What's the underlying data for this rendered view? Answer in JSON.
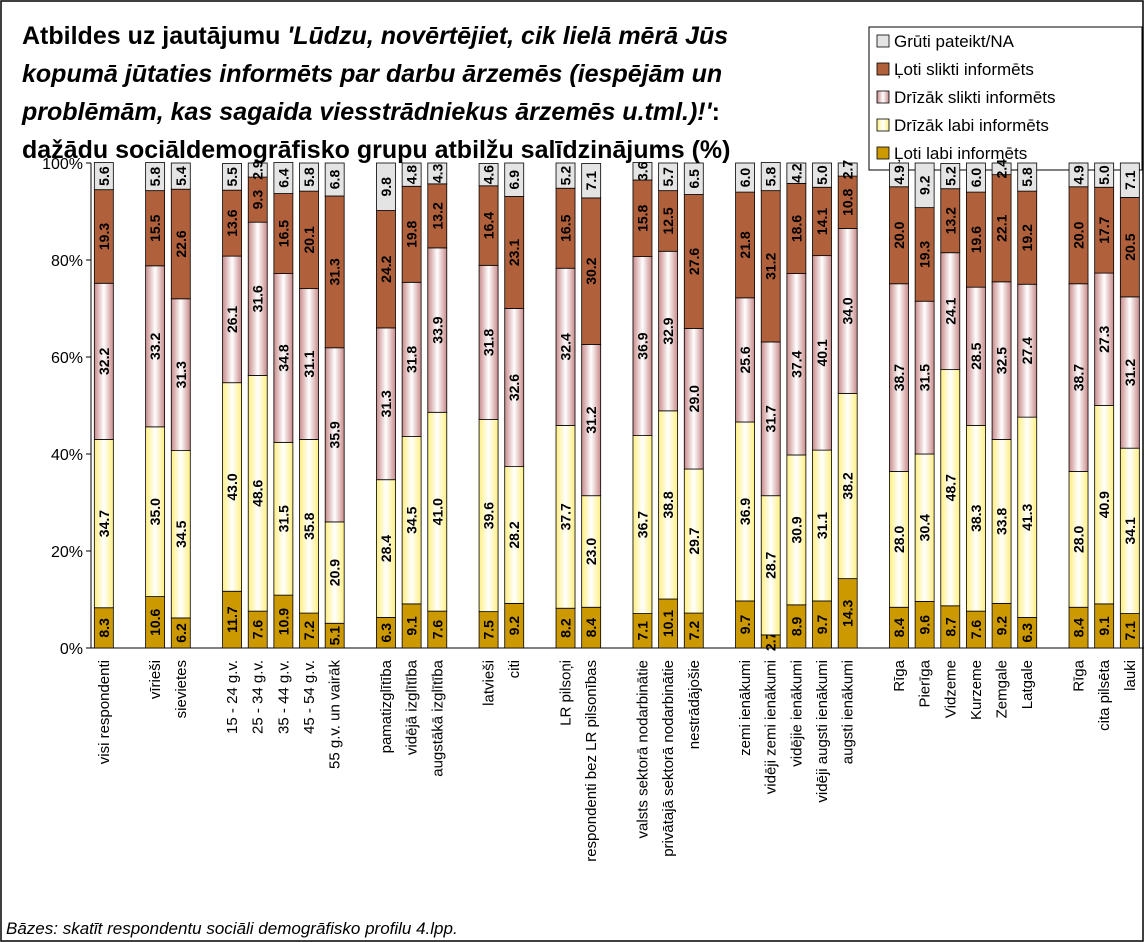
{
  "chart_data": {
    "type": "stacked_bar",
    "title": [
      "Atbildes uz jautājumu ",
      "'Lūdzu, novērtējiet, cik lielā mērā Jūs",
      "kopumā jūtaties informēts par darbu ārzemēs (iespējām un",
      "problēmām, kas sagaida viesstrādniekus ārzemēs u.tml.)!'",
      ":",
      "dažādu sociāldemogrāfisko grupu atbilžu salīdzinājums (%)"
    ],
    "footnote": "Bāzes: skatīt respondentu sociāli demogrāfisko profilu 4.lpp.",
    "categories": [
      "visi respondenti",
      null,
      "vīrieši",
      "sievietes",
      null,
      "15 - 24 g.v.",
      "25 - 34 g.v.",
      "35 - 44 g.v.",
      "45 - 54 g.v.",
      "55 g.v. un vairāk",
      null,
      "pamatizglītība",
      "vidējā izglītība",
      "augstākā izglītība",
      null,
      "latvieši",
      "citi",
      null,
      "LR pilsoņi",
      "respondenti bez LR pilsonības",
      null,
      "valsts sektorā nodarbinātie",
      "privātajā sektorā nodarbinātie",
      "nestrādājošie",
      null,
      "zemi ienākumi",
      "vidēji zemi ienākumi",
      "vidējie ienākumi",
      "vidēji augsti ienākumi",
      "augsti ienākumi",
      null,
      "Rīga",
      "Pierīga",
      "Vidzeme",
      "Kurzeme",
      "Zemgale",
      "Latgale",
      null,
      "Rīga",
      "cita pilsēta",
      "lauki"
    ],
    "series": [
      {
        "name": "Ļoti labi informēts",
        "color": "#cc9900",
        "values": [
          8.3,
          null,
          10.6,
          6.2,
          null,
          11.7,
          7.6,
          10.9,
          7.2,
          5.1,
          null,
          6.3,
          9.1,
          7.6,
          null,
          7.5,
          9.2,
          null,
          8.2,
          8.4,
          null,
          7.1,
          10.1,
          7.2,
          null,
          9.7,
          2.7,
          8.9,
          9.7,
          14.3,
          null,
          8.4,
          9.6,
          8.7,
          7.6,
          9.2,
          6.3,
          null,
          8.4,
          9.1,
          7.1
        ],
        "value_labels": [
          "8.3",
          null,
          "10.6",
          "6.2",
          null,
          "11.7",
          "7.6",
          "10.9",
          "7.2",
          "5.1",
          null,
          "6.3",
          "9.1",
          "7.6",
          null,
          "7.5",
          "9.2",
          null,
          "8.2",
          "8.4",
          null,
          "7.1",
          "10.1",
          "7.2",
          null,
          "9.7",
          "2.7",
          "8.9",
          "9.7",
          "14.3",
          null,
          "8.4",
          "9.6",
          "8.7",
          "7.6",
          "9.2",
          "6.3",
          null,
          "8.4",
          "9.1",
          "7.1"
        ]
      },
      {
        "name": "Drīzāk labi informēts",
        "color": "#ffef80",
        "values": [
          34.7,
          null,
          35.0,
          34.5,
          null,
          43.0,
          48.6,
          31.5,
          35.8,
          20.9,
          null,
          28.4,
          34.5,
          41.0,
          null,
          39.6,
          28.2,
          null,
          37.7,
          23.0,
          null,
          36.7,
          38.8,
          29.7,
          null,
          36.9,
          28.7,
          30.9,
          31.1,
          38.2,
          null,
          28.0,
          30.4,
          48.7,
          38.3,
          33.8,
          41.3,
          null,
          28.0,
          40.9,
          34.1
        ],
        "value_labels": [
          "34.7",
          null,
          "35.0",
          "34.5",
          null,
          "43.0",
          "48.6",
          "31.5",
          "35.8",
          "20.9",
          null,
          "28.4",
          "34.5",
          "41.0",
          null,
          "39.6",
          "28.2",
          null,
          "37.7",
          "23.0",
          null,
          "36.7",
          "38.8",
          "29.7",
          null,
          "36.9",
          "28.7",
          "30.9",
          "31.1",
          "38.2",
          null,
          "28.0",
          "30.4",
          "48.7",
          "38.3",
          "33.8",
          "41.3",
          null,
          "28.0",
          "40.9",
          "34.1"
        ]
      },
      {
        "name": "Drīzāk slikti informēts",
        "color": "#c98a8a",
        "values": [
          32.2,
          null,
          33.2,
          31.3,
          null,
          26.1,
          31.6,
          34.8,
          31.1,
          35.9,
          null,
          31.3,
          31.8,
          33.9,
          null,
          31.8,
          32.6,
          null,
          32.4,
          31.2,
          null,
          36.9,
          32.9,
          29.0,
          null,
          25.6,
          31.7,
          37.4,
          40.1,
          34.0,
          null,
          38.7,
          31.5,
          24.1,
          28.5,
          32.5,
          27.4,
          null,
          38.7,
          27.3,
          31.2
        ],
        "value_labels": [
          "32.2",
          null,
          "33.2",
          "31.3",
          null,
          "26.1",
          "31.6",
          "34.8",
          "31.1",
          "35.9",
          null,
          "31.3",
          "31.8",
          "33.9",
          null,
          "31.8",
          "32.6",
          null,
          "32.4",
          "31.2",
          null,
          "36.9",
          "32.9",
          "29.0",
          null,
          "25.6",
          "31.7",
          "37.4",
          "40.1",
          "34.0",
          null,
          "38.7",
          "31.5",
          "24.1",
          "28.5",
          "32.5",
          "27.4",
          null,
          "38.7",
          "27.3",
          "31.2"
        ]
      },
      {
        "name": "Ļoti slikti informēts",
        "color": "#b0603a",
        "values": [
          19.3,
          null,
          15.5,
          22.6,
          null,
          13.6,
          9.3,
          16.5,
          20.1,
          31.3,
          null,
          24.2,
          19.8,
          13.2,
          null,
          16.4,
          23.1,
          null,
          16.5,
          30.2,
          null,
          15.8,
          12.5,
          27.6,
          null,
          21.8,
          31.2,
          18.6,
          14.1,
          10.8,
          null,
          20.0,
          19.3,
          13.2,
          19.6,
          22.1,
          19.2,
          null,
          20.0,
          17.7,
          20.5
        ],
        "value_labels": [
          "19.3",
          null,
          "15.5",
          "22.6",
          null,
          "13.6",
          "9.3",
          "16.5",
          "20.1",
          "31.3",
          null,
          "24.2",
          "19.8",
          "13.2",
          null,
          "16.4",
          "23.1",
          null,
          "16.5",
          "30.2",
          null,
          "15.8",
          "12.5",
          "27.6",
          null,
          "21.8",
          "31.2",
          "18.6",
          "14.1",
          "10.8",
          null,
          "20.0",
          "19.3",
          "13.2",
          "19.6",
          "22.1",
          "19.2",
          null,
          "20.0",
          "17.7",
          "20.5"
        ]
      },
      {
        "name": "Grūti pateikt/NA",
        "color": "#e4e4e4",
        "values": [
          5.6,
          null,
          5.8,
          5.4,
          null,
          5.5,
          2.9,
          6.4,
          5.8,
          6.8,
          null,
          9.8,
          4.8,
          4.3,
          null,
          4.6,
          6.9,
          null,
          5.2,
          7.1,
          null,
          3.6,
          5.7,
          6.5,
          null,
          6.0,
          5.8,
          4.2,
          5.0,
          2.7,
          null,
          4.9,
          9.2,
          5.2,
          6.0,
          2.4,
          5.8,
          null,
          4.9,
          5.0,
          7.1
        ],
        "value_labels": [
          "5.6",
          null,
          "5.8",
          "5.4",
          null,
          "5.5",
          "2.9",
          "6.4",
          "5.8",
          "6.8",
          null,
          "9.8",
          "4.8",
          "4.3",
          null,
          "4.6",
          "6.9",
          null,
          "5.2",
          "7.1",
          null,
          "3.6",
          "5.7",
          "6.5",
          null,
          "6.0",
          "5.8",
          "4.2",
          "5.0",
          "2.7",
          null,
          "4.9",
          "9.2",
          "5.2",
          "6.0",
          "2.4",
          "5.8",
          null,
          "4.9",
          "5.0",
          "7.1"
        ]
      }
    ],
    "ylim": [
      0,
      100
    ],
    "yticks": [
      {
        "value": 0,
        "label": "0%"
      },
      {
        "value": 20,
        "label": "20%"
      },
      {
        "value": 40,
        "label": "40%"
      },
      {
        "value": 60,
        "label": "60%"
      },
      {
        "value": 80,
        "label": "80%"
      },
      {
        "value": 100,
        "label": "100%"
      }
    ]
  }
}
